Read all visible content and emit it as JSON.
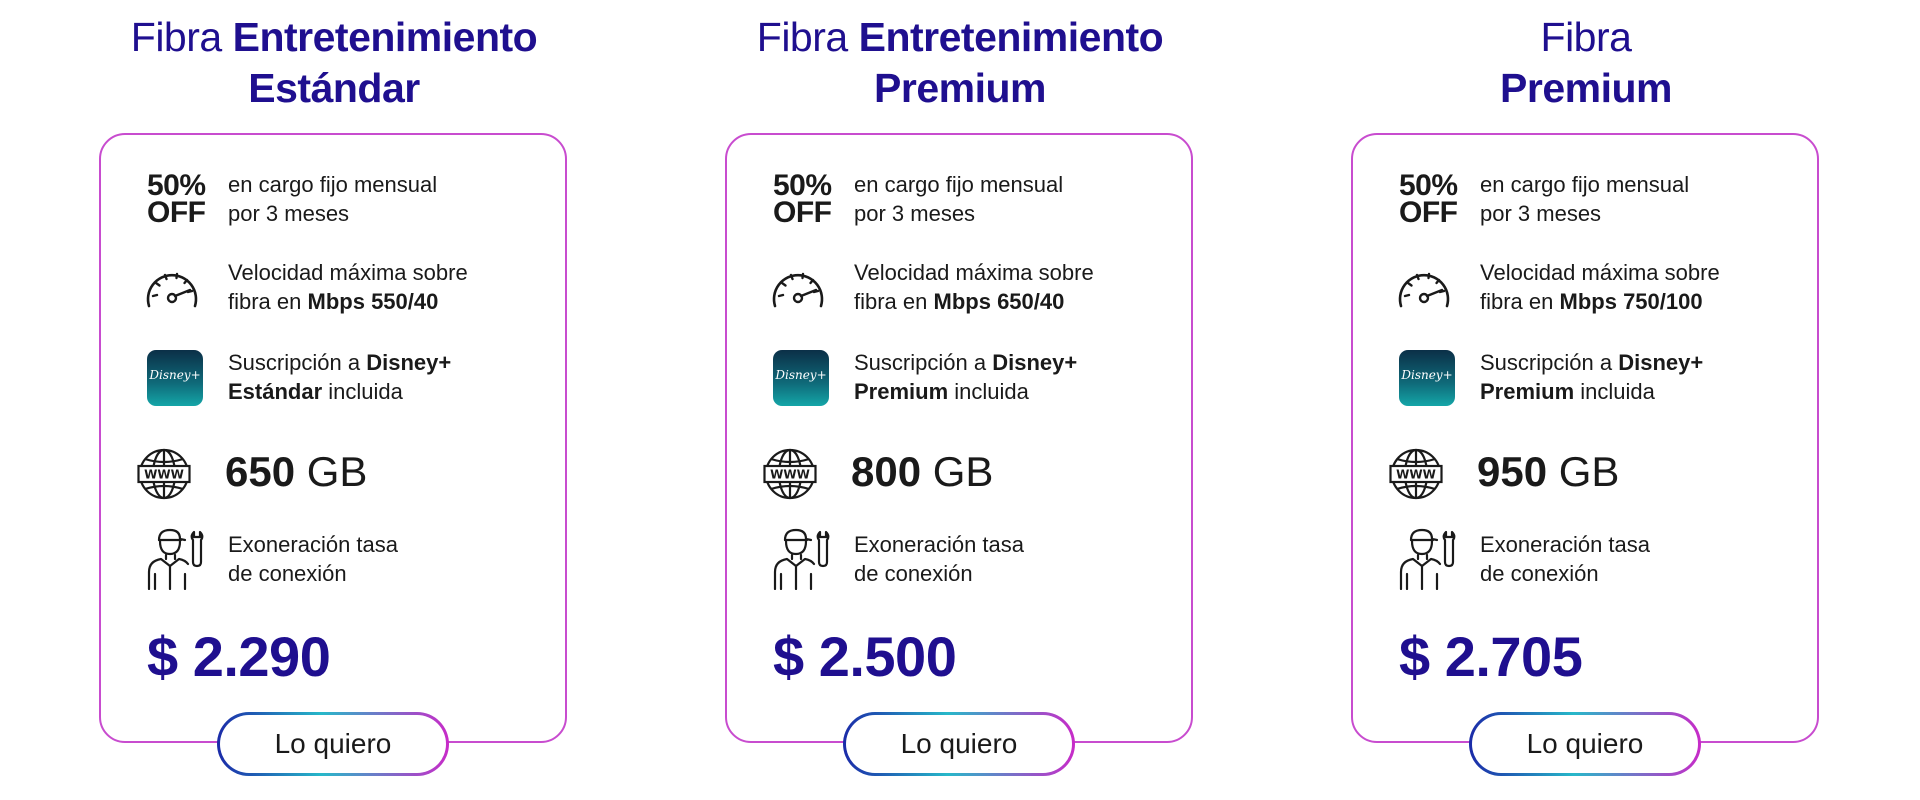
{
  "plans": [
    {
      "title_light": "Fibra",
      "title_bold_1": "Entretenimiento",
      "title_bold_2": "Estándar",
      "off_line1": "50%",
      "off_line2": "OFF",
      "discount_line1": "en cargo fijo mensual",
      "discount_line2": "por 3 meses",
      "speed_line1": "Velocidad máxima sobre",
      "speed_line2_prefix": "fibra en",
      "speed_value": "Mbps 550/40",
      "disney_prefix": "Suscripción a",
      "disney_brand": "Disney+",
      "disney_tier": "Estándar",
      "disney_suffix": "incluida",
      "disney_logo_text": "Disney+",
      "data_value": "650",
      "data_unit": "GB",
      "waiver_line1": "Exoneración tasa",
      "waiver_line2": "de conexión",
      "price": "$ 2.290",
      "cta": "Lo quiero"
    },
    {
      "title_light": "Fibra",
      "title_bold_1": "Entretenimiento",
      "title_bold_2": "Premium",
      "off_line1": "50%",
      "off_line2": "OFF",
      "discount_line1": "en cargo fijo mensual",
      "discount_line2": "por 3 meses",
      "speed_line1": "Velocidad máxima sobre",
      "speed_line2_prefix": "fibra en",
      "speed_value": "Mbps 650/40",
      "disney_prefix": "Suscripción a",
      "disney_brand": "Disney+",
      "disney_tier": "Premium",
      "disney_suffix": "incluida",
      "disney_logo_text": "Disney+",
      "data_value": "800",
      "data_unit": "GB",
      "waiver_line1": "Exoneración tasa",
      "waiver_line2": "de conexión",
      "price": "$ 2.500",
      "cta": "Lo quiero"
    },
    {
      "title_light": "Fibra",
      "title_bold_1": "",
      "title_bold_2": "Premium",
      "off_line1": "50%",
      "off_line2": "OFF",
      "discount_line1": "en cargo fijo mensual",
      "discount_line2": "por 3 meses",
      "speed_line1": "Velocidad máxima sobre",
      "speed_line2_prefix": "fibra en",
      "speed_value": "Mbps 750/100",
      "disney_prefix": "Suscripción a",
      "disney_brand": "Disney+",
      "disney_tier": "Premium",
      "disney_suffix": "incluida",
      "disney_logo_text": "Disney+",
      "data_value": "950",
      "data_unit": "GB",
      "waiver_line1": "Exoneración tasa",
      "waiver_line2": "de conexión",
      "price": "$ 2.705",
      "cta": "Lo quiero"
    }
  ],
  "colors": {
    "title": "#1f0f8f",
    "price": "#1f0f8f",
    "card_border": "#c84ccf",
    "cta_gradient": [
      "#1b2aa8",
      "#27b8c9",
      "#c82ac8"
    ],
    "disney_bg": [
      "#0b2f47",
      "#14a6a8"
    ]
  },
  "icons": [
    "speedometer-icon",
    "disney-plus-icon",
    "globe-www-icon",
    "technician-icon"
  ]
}
